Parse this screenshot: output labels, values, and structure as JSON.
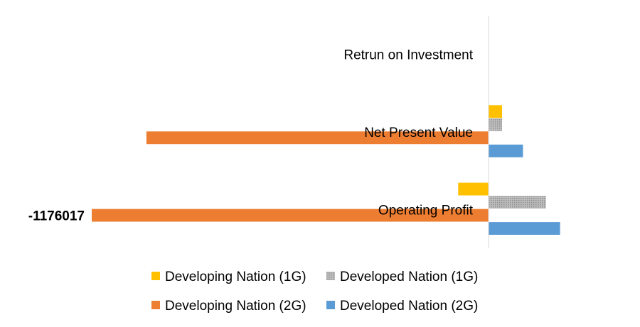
{
  "chart_data": {
    "type": "bar",
    "orientation": "horizontal",
    "categories": [
      "Operating Profit",
      "Net Present Value",
      "Retrun on Investment"
    ],
    "series": [
      {
        "name": "Developing Nation (1G)",
        "color": "#FFC000",
        "values": [
          -90000,
          40000,
          0
        ]
      },
      {
        "name": "Developed Nation (1G)",
        "color": "#A5A5A5",
        "pattern": "dotted",
        "values": [
          170000,
          40000,
          0
        ]
      },
      {
        "name": "Developing Nation (2G)",
        "color": "#ED7D31",
        "values": [
          -1176017,
          -1014000,
          0
        ]
      },
      {
        "name": "Developed Nation (2G)",
        "color": "#5B9BD5",
        "values": [
          212000,
          102000,
          0
        ]
      }
    ],
    "data_labels": [
      {
        "text": "-1176017",
        "series": "Developing Nation (2G)",
        "category": "Operating Profit",
        "value": -1176017
      }
    ],
    "xlim": [
      -1176017,
      440000
    ],
    "grid": false,
    "legend": "bottom"
  }
}
